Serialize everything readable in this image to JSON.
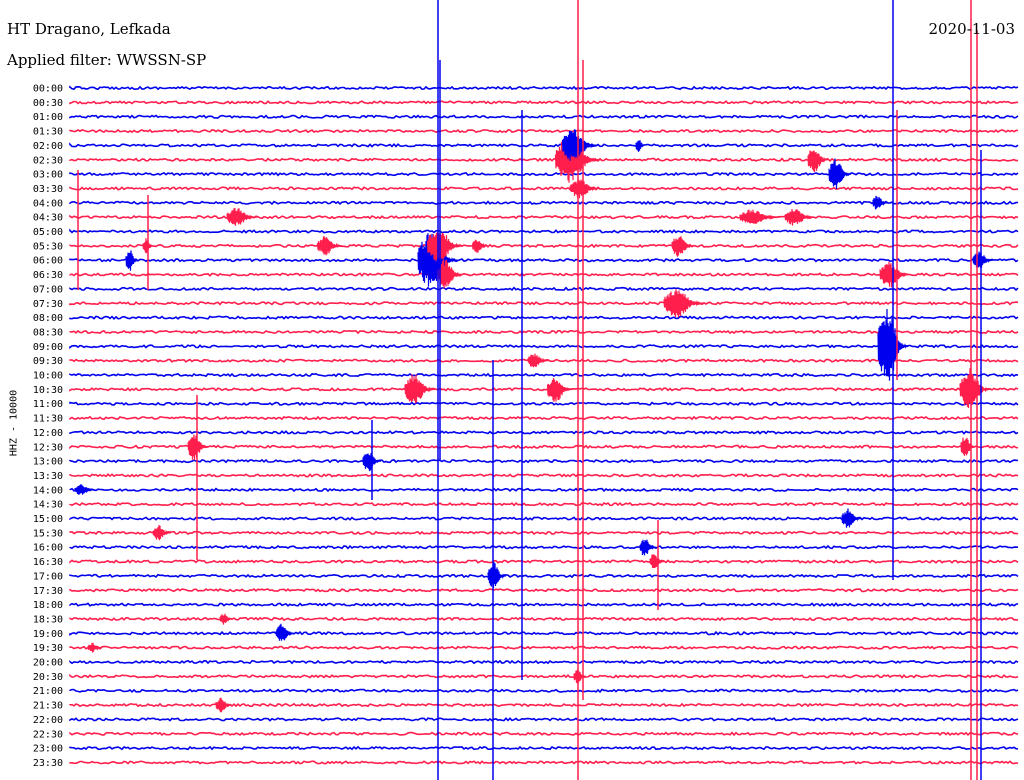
{
  "header": {
    "station": "HT Dragano, Lefkada",
    "filter": "Applied filter: WWSSN-SP",
    "date": "2020-11-03"
  },
  "chart_data": {
    "type": "helicorder",
    "ylabel": "HHZ - 10000",
    "row_labels": [
      "00:00",
      "00:30",
      "01:00",
      "01:30",
      "02:00",
      "02:30",
      "03:00",
      "03:30",
      "04:00",
      "04:30",
      "05:00",
      "05:30",
      "06:00",
      "06:30",
      "07:00",
      "07:30",
      "08:00",
      "08:30",
      "09:00",
      "09:30",
      "10:00",
      "10:30",
      "11:00",
      "11:30",
      "12:00",
      "12:30",
      "13:00",
      "13:30",
      "14:00",
      "14:30",
      "15:00",
      "15:30",
      "16:00",
      "16:30",
      "17:00",
      "17:30",
      "18:00",
      "18:30",
      "19:00",
      "19:30",
      "20:00",
      "20:30",
      "21:00",
      "21:30",
      "22:00",
      "22:30",
      "23:00",
      "23:30"
    ],
    "row_minutes": 30,
    "colors": {
      "even_rows": "#0000ee",
      "odd_rows": "#ff1e4c"
    }
  }
}
